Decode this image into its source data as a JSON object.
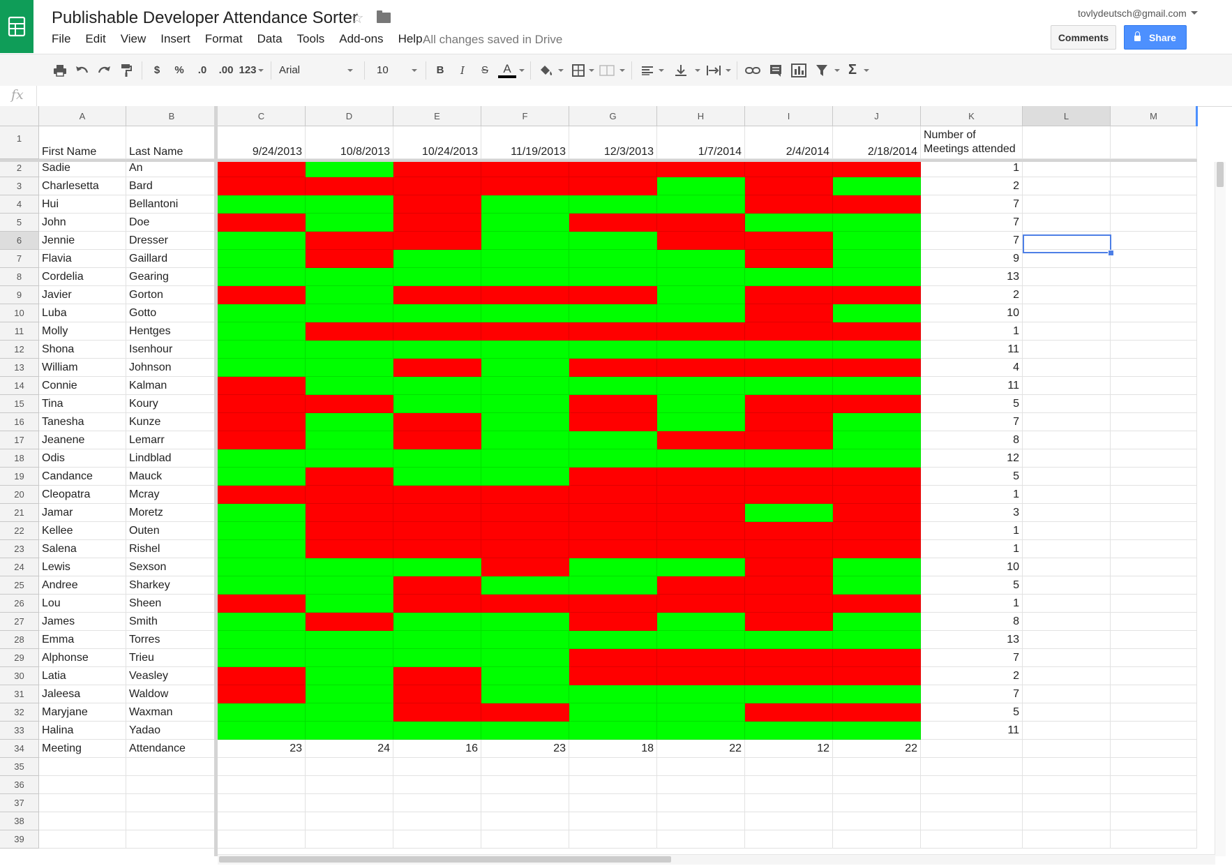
{
  "app": {
    "title": "Publishable Developer Attendance Sorter",
    "account": "tovlydeutsch@gmail.com",
    "saved_status": "All changes saved in Drive",
    "comments_label": "Comments",
    "share_label": "Share"
  },
  "menu": [
    "File",
    "Edit",
    "View",
    "Insert",
    "Format",
    "Data",
    "Tools",
    "Add-ons",
    "Help"
  ],
  "toolbar": {
    "font_name": "Arial",
    "font_size": "10",
    "currency": "$",
    "percent": "%",
    "dec_decrease": ".0",
    "dec_increase": ".00",
    "more_formats": "123",
    "bold": "B",
    "italic": "I",
    "strike": "S",
    "text_color": "A",
    "functions": "Σ"
  },
  "formula_bar": {
    "label": "fx",
    "value": ""
  },
  "columns": [
    "A",
    "B",
    "C",
    "D",
    "E",
    "F",
    "G",
    "H",
    "I",
    "J",
    "K",
    "L",
    "M"
  ],
  "header_row": {
    "first_name": "First Name",
    "last_name": "Last Name",
    "dates": [
      "9/24/2013",
      "10/8/2013",
      "10/24/2013",
      "11/19/2013",
      "12/3/2013",
      "1/7/2014",
      "2/4/2014",
      "2/18/2014"
    ],
    "count_label_1": "Number of",
    "count_label_2": "Meetings attended"
  },
  "rows": [
    {
      "first": "Sadie",
      "last": "An",
      "att": "01000000",
      "count": "1"
    },
    {
      "first": "Charlesetta",
      "last": "Bard",
      "att": "00000101",
      "count": "2"
    },
    {
      "first": "Hui",
      "last": "Bellantoni",
      "att": "11011100",
      "count": "7"
    },
    {
      "first": "John",
      "last": "Doe",
      "att": "01010011",
      "count": "7"
    },
    {
      "first": "Jennie",
      "last": "Dresser",
      "att": "10011001",
      "count": "7"
    },
    {
      "first": "Flavia",
      "last": "Gaillard",
      "att": "10111101",
      "count": "9"
    },
    {
      "first": "Cordelia",
      "last": "Gearing",
      "att": "11111111",
      "count": "13"
    },
    {
      "first": "Javier",
      "last": "Gorton",
      "att": "01000100",
      "count": "2"
    },
    {
      "first": "Luba",
      "last": "Gotto",
      "att": "11111101",
      "count": "10"
    },
    {
      "first": "Molly",
      "last": "Hentges",
      "att": "10000000",
      "count": "1"
    },
    {
      "first": "Shona",
      "last": "Isenhour",
      "att": "11111111",
      "count": "11"
    },
    {
      "first": "William",
      "last": "Johnson",
      "att": "11010000",
      "count": "4"
    },
    {
      "first": "Connie",
      "last": "Kalman",
      "att": "01111111",
      "count": "11"
    },
    {
      "first": "Tina",
      "last": "Koury",
      "att": "00110100",
      "count": "5"
    },
    {
      "first": "Tanesha",
      "last": "Kunze",
      "att": "01010101",
      "count": "7"
    },
    {
      "first": "Jeanene",
      "last": "Lemarr",
      "att": "01011001",
      "count": "8"
    },
    {
      "first": "Odis",
      "last": "Lindblad",
      "att": "11111111",
      "count": "12"
    },
    {
      "first": "Candance",
      "last": "Mauck",
      "att": "10110000",
      "count": "5"
    },
    {
      "first": "Cleopatra",
      "last": "Mcray",
      "att": "00000000",
      "count": "1"
    },
    {
      "first": "Jamar",
      "last": "Moretz",
      "att": "10000010",
      "count": "3"
    },
    {
      "first": "Kellee",
      "last": "Outen",
      "att": "10000000",
      "count": "1"
    },
    {
      "first": "Salena",
      "last": "Rishel",
      "att": "10000000",
      "count": "1"
    },
    {
      "first": "Lewis",
      "last": "Sexson",
      "att": "11101101",
      "count": "10"
    },
    {
      "first": "Andree",
      "last": "Sharkey",
      "att": "11011001",
      "count": "5"
    },
    {
      "first": "Lou",
      "last": "Sheen",
      "att": "01000000",
      "count": "1"
    },
    {
      "first": "James",
      "last": "Smith",
      "att": "10110101",
      "count": "8"
    },
    {
      "first": "Emma",
      "last": "Torres",
      "att": "11111111",
      "count": "13"
    },
    {
      "first": "Alphonse",
      "last": "Trieu",
      "att": "11110000",
      "count": "7"
    },
    {
      "first": "Latia",
      "last": "Veasley",
      "att": "01010000",
      "count": "2"
    },
    {
      "first": "Jaleesa",
      "last": "Waldow",
      "att": "01011111",
      "count": "7"
    },
    {
      "first": "Maryjane",
      "last": "Waxman",
      "att": "11001100",
      "count": "5"
    },
    {
      "first": "Halina",
      "last": "Yadao",
      "att": "11111111",
      "count": "11"
    }
  ],
  "footer_row": {
    "first": "Meeting",
    "last": "Attendance",
    "totals": [
      "23",
      "24",
      "16",
      "23",
      "18",
      "22",
      "12",
      "22"
    ]
  },
  "row_numbers": [
    "1",
    "2",
    "3",
    "4",
    "5",
    "6",
    "7",
    "8",
    "9",
    "10",
    "11",
    "12",
    "13",
    "14",
    "15",
    "16",
    "17",
    "18",
    "19",
    "20",
    "21",
    "22",
    "23",
    "24",
    "25",
    "26",
    "27",
    "28",
    "29",
    "30",
    "31",
    "32",
    "33",
    "34",
    "35",
    "36",
    "37",
    "38",
    "39"
  ],
  "colors": {
    "attended": "#00ff00",
    "absent": "#ff0000",
    "brand": "#0f9d58",
    "share": "#4d90fe",
    "selection": "#4d7fe6"
  },
  "selected_cell": "L6"
}
